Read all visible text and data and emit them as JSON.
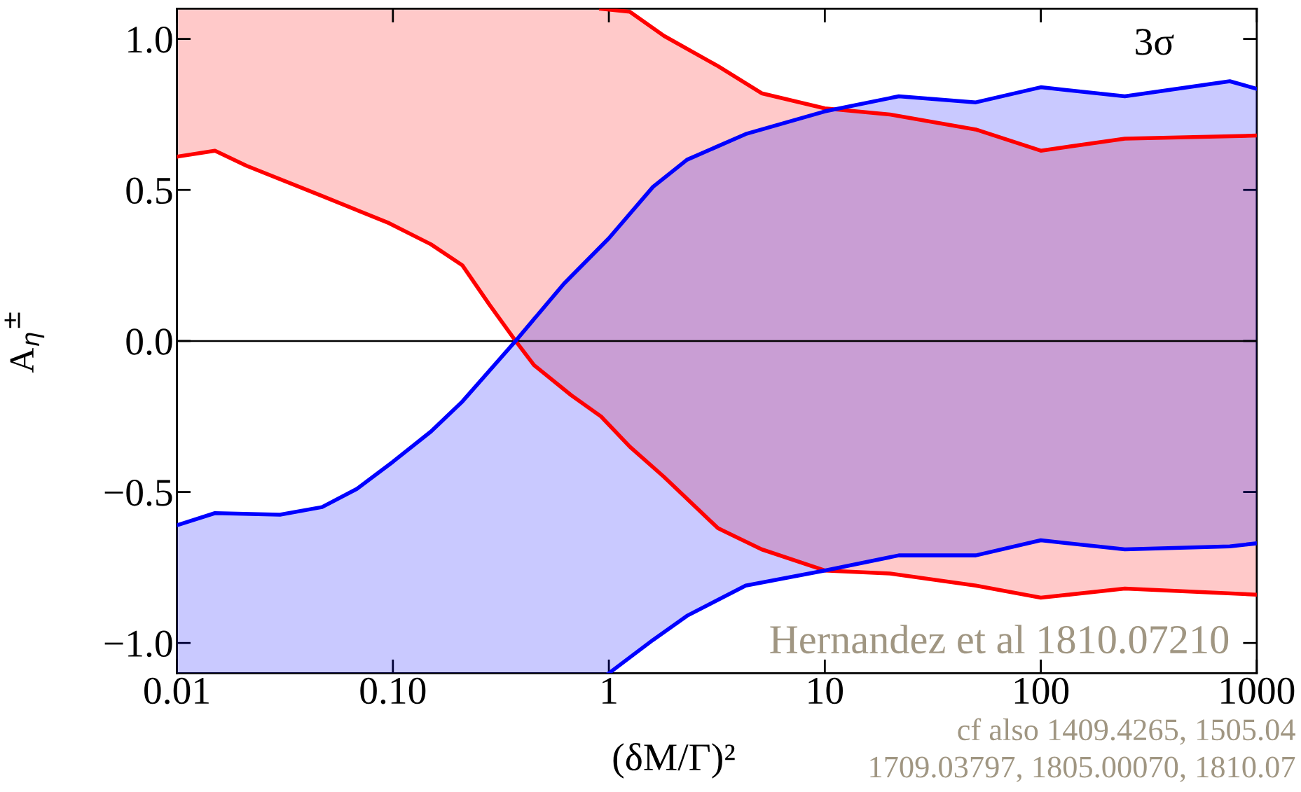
{
  "chart_data": {
    "type": "line",
    "xlabel": "(δM/Γ)²",
    "ylabel": "A$_{η}$$^{±}$",
    "log": "x",
    "xlim": [
      0.01,
      1000
    ],
    "ylim": [
      -1.1,
      1.1
    ],
    "xticks": [
      0.01,
      {
        "value": 0.1,
        "label": "0.10"
      },
      1,
      10,
      100,
      1000
    ],
    "yticks": [
      {
        "value": -1.0,
        "label": "−1.0"
      },
      {
        "value": -0.5,
        "label": "−0.5"
      },
      {
        "value": 0.0,
        "label": "0.0"
      },
      0.5,
      {
        "value": 1.0,
        "label": "1.0"
      }
    ],
    "grid": false,
    "legend": false,
    "ref_lines": [
      {
        "axis": "y",
        "value": 0,
        "color": "#000000"
      }
    ],
    "series": [
      {
        "color": "#ff0000",
        "x": [
          0.01,
          0.015,
          0.021,
          0.047,
          0.096,
          0.15,
          0.21,
          0.28,
          0.37,
          0.45,
          0.67,
          0.92,
          1.25,
          1.8,
          3.2,
          5.1,
          10,
          20,
          50,
          100,
          245,
          1000
        ],
        "values": [
          0.61,
          0.63,
          0.58,
          0.48,
          0.39,
          0.32,
          0.25,
          0.12,
          0,
          -0.08,
          -0.18,
          -0.25,
          -0.35,
          -0.45,
          -0.62,
          -0.69,
          -0.76,
          -0.77,
          -0.81,
          -0.85,
          -0.82,
          -0.84
        ],
        "lower": [
          0.61,
          0.63,
          0.58,
          0.48,
          0.39,
          0.32,
          0.25,
          0.12,
          0,
          -0.08,
          -0.18,
          -0.25,
          -0.35,
          -0.45,
          -0.62,
          -0.69,
          -0.76,
          -0.77,
          -0.81,
          -0.85,
          -0.82,
          -0.84
        ],
        "upper": [
          1.1,
          1.1,
          1.1,
          1.1,
          1.1,
          1.1,
          1.1,
          1.1,
          1.1,
          1.1,
          1.1,
          1.1,
          1.09,
          1.01,
          0.91,
          0.82,
          0.77,
          0.75,
          0.7,
          0.63,
          0.67,
          0.68
        ]
      },
      {
        "color": "#ff0000",
        "x": [
          0.92,
          1.25,
          1.8,
          3.2,
          5.1,
          10,
          20,
          50,
          100,
          245,
          1000
        ],
        "values": [
          1.1,
          1.09,
          1.01,
          0.91,
          0.82,
          0.77,
          0.75,
          0.7,
          0.63,
          0.67,
          0.68
        ]
      },
      {
        "color": "#0000ff",
        "x": [
          0.01,
          0.015,
          0.03,
          0.047,
          0.068,
          0.1,
          0.15,
          0.21,
          0.37,
          0.62,
          1.0,
          1.6,
          2.3,
          4.3,
          10,
          22,
          50,
          100,
          245,
          750,
          1000
        ],
        "values": [
          -0.61,
          -0.57,
          -0.575,
          -0.55,
          -0.49,
          -0.4,
          -0.3,
          -0.2,
          0,
          0.19,
          0.34,
          0.51,
          0.6,
          0.685,
          0.76,
          0.81,
          0.79,
          0.84,
          0.81,
          0.86,
          0.835
        ],
        "lower": [
          -1.1,
          -1.1,
          -1.1,
          -1.1,
          -1.1,
          -1.1,
          -1.1,
          -1.1,
          -1.1,
          -1.1,
          -1.1,
          -0.99,
          -0.91,
          -0.81,
          -0.76,
          -0.71,
          -0.71,
          -0.66,
          -0.69,
          -0.68,
          -0.67
        ],
        "upper": [
          -0.61,
          -0.57,
          -0.575,
          -0.55,
          -0.49,
          -0.4,
          -0.3,
          -0.2,
          0,
          0.19,
          0.34,
          0.51,
          0.6,
          0.685,
          0.76,
          0.81,
          0.79,
          0.84,
          0.81,
          0.86,
          0.835
        ]
      },
      {
        "color": "#0000ff",
        "x": [
          1.0,
          1.6,
          2.3,
          4.3,
          10,
          22,
          50,
          100,
          245,
          750,
          1000
        ],
        "values": [
          -1.1,
          -0.99,
          -0.91,
          -0.81,
          -0.76,
          -0.71,
          -0.71,
          -0.66,
          -0.69,
          -0.68,
          -0.67
        ]
      }
    ],
    "annotations": [
      "3σ",
      "Hernandez et al 1810.07210",
      "cf also 1409.4265, 1505.04",
      "1709.03797, 1805.00070, 1810.07"
    ]
  }
}
